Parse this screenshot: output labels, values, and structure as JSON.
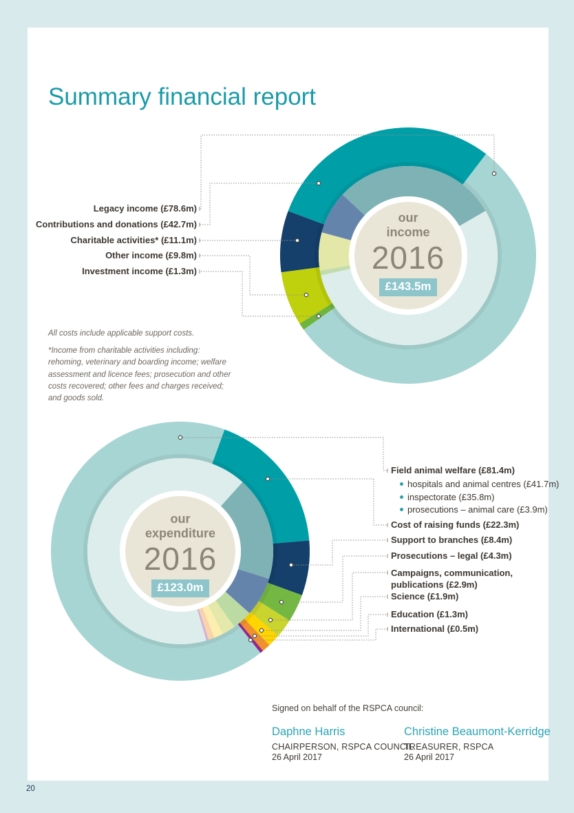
{
  "page": {
    "title": "Summary financial report",
    "page_number": "20"
  },
  "colors": {
    "title_teal": "#1a9ba8",
    "border_blue": "#d9eaed",
    "label_dark": "#3c3731",
    "leader_line_gray": "#8f8f89",
    "center_circle_beige": "#eae6d7",
    "total_chip_teal": "#8dc5cb",
    "center_text_gray": "#8b8577",
    "signature_name_teal": "#2ba4b4"
  },
  "chart_data": [
    {
      "type": "pie",
      "subtype": "double-ring-donut",
      "name": "income",
      "center_label_line1": "our",
      "center_label_line2": "income",
      "center_year": "2016",
      "center_total": "£143.5m",
      "total_value": 143.5,
      "currency_unit": "£m",
      "start_angle": 37.5,
      "inner_start_angle": 60,
      "legend_position": "left",
      "slices": [
        {
          "name": "Legacy income",
          "value": 78.6,
          "color": "#a7d5d3",
          "color_light": "#dcedec"
        },
        {
          "name": "Investment income",
          "value": 1.3,
          "color": "#6eb43d",
          "color_light": "#c2dcae"
        },
        {
          "name": "Other income",
          "value": 9.8,
          "color": "#bfd00d",
          "color_light": "#e3e8a9"
        },
        {
          "name": "Charitable activities",
          "value": 11.1,
          "color": "#14406b",
          "color_light": "#6584ac"
        },
        {
          "name": "Contributions and donations",
          "value": 42.7,
          "color": "#009fa8",
          "color_light": "#7fb2b5"
        }
      ],
      "labels": [
        "Legacy income (£78.6m)",
        "Contributions and donations (£42.7m)",
        "Charitable activities* (£11.1m)",
        "Other income (£9.8m)",
        "Investment income (£1.3m)"
      ]
    },
    {
      "type": "pie",
      "subtype": "double-ring-donut",
      "name": "expenditure",
      "center_label_line1": "our",
      "center_label_line2": "expenditure",
      "center_year": "2016",
      "center_total": "£123.0m",
      "total_value": 123.0,
      "currency_unit": "£m",
      "start_angle": 20,
      "inner_start_angle": 42,
      "legend_position": "right",
      "slices": [
        {
          "name": "Cost of raising funds",
          "value": 22.3,
          "color": "#009fa8",
          "color_light": "#7fb2b5"
        },
        {
          "name": "Support to branches",
          "value": 8.4,
          "color": "#14406b",
          "color_light": "#6584ac"
        },
        {
          "name": "Prosecutions – legal",
          "value": 4.3,
          "color": "#74b843",
          "color_light": "#bcdba4"
        },
        {
          "name": "Campaigns, communication, publications",
          "value": 2.9,
          "color": "#c9d42e",
          "color_light": "#e4e9ab"
        },
        {
          "name": "Science",
          "value": 1.9,
          "color": "#ffd500",
          "color_light": "#fdeeb0"
        },
        {
          "name": "Education",
          "value": 1.3,
          "color": "#f0912d",
          "color_light": "#f8d3ab"
        },
        {
          "name": "International",
          "value": 0.5,
          "color": "#92278f",
          "color_light": "#d8aed4"
        },
        {
          "name": "Field animal welfare",
          "value": 81.4,
          "color": "#a7d5d3",
          "color_light": "#dcedec",
          "sub_slices": [
            {
              "name": "hospitals and animal centres",
              "value": 41.7
            },
            {
              "name": "inspectorate",
              "value": 35.8
            },
            {
              "name": "prosecutions – animal care",
              "value": 3.9
            }
          ]
        }
      ],
      "labels": [
        "Field animal welfare (£81.4m)",
        "hospitals and animal centres (£41.7m)",
        "inspectorate (£35.8m)",
        "prosecutions – animal care (£3.9m)",
        "Cost of raising funds (£22.3m)",
        "Support to branches (£8.4m)",
        "Prosecutions – legal (£4.3m)",
        "Campaigns, communication, publications (£2.9m)",
        "Science (£1.9m)",
        "Education (£1.3m)",
        "International (£0.5m)"
      ]
    }
  ],
  "footnotes": {
    "line1": "All costs include applicable support costs.",
    "line2": "*Income from charitable activities including: rehoming, veterinary and boarding income; welfare assessment and licence fees; prosecution and other costs recovered; other fees and charges received; and goods sold."
  },
  "signature": {
    "heading": "Signed on behalf of the RSPCA council:",
    "signers": [
      {
        "name": "Daphne Harris",
        "role": "CHAIRPERSON, RSPCA COUNCIL",
        "date": "26 April 2017"
      },
      {
        "name": "Christine Beaumont-Kerridge",
        "role": "TREASURER, RSPCA",
        "date": "26 April 2017"
      }
    ]
  }
}
